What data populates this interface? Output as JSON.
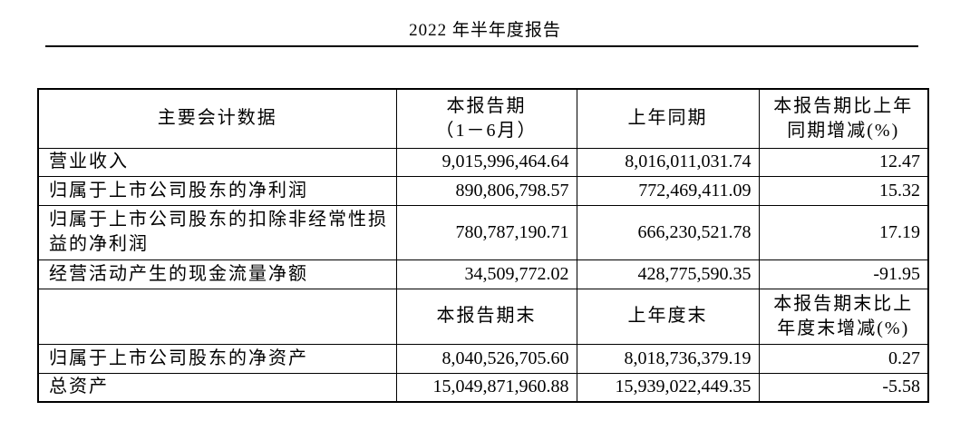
{
  "page": {
    "title": "2022 年半年度报告"
  },
  "colors": {
    "text": "#000000",
    "border": "#000000",
    "background": "#ffffff"
  },
  "table": {
    "header_period": {
      "col1": "主要会计数据",
      "col2_line1": "本报告期",
      "col2_line2": "（1－6月）",
      "col3": "上年同期",
      "col4_line1": "本报告期比上年",
      "col4_line2": "同期增减(%)"
    },
    "rows_period": [
      {
        "label": "营业收入",
        "current": "9,015,996,464.64",
        "prior": "8,016,011,031.74",
        "change": "12.47"
      },
      {
        "label": "归属于上市公司股东的净利润",
        "current": "890,806,798.57",
        "prior": "772,469,411.09",
        "change": "15.32"
      },
      {
        "label": "归属于上市公司股东的扣除非经常性损益的净利润",
        "current": "780,787,190.71",
        "prior": "666,230,521.78",
        "change": "17.19"
      },
      {
        "label": "经营活动产生的现金流量净额",
        "current": "34,509,772.02",
        "prior": "428,775,590.35",
        "change": "-91.95"
      }
    ],
    "header_end": {
      "col1": "",
      "col2": "本报告期末",
      "col3": "上年度末",
      "col4_line1": "本报告期末比上",
      "col4_line2": "年度末增减(%)"
    },
    "rows_end": [
      {
        "label": "归属于上市公司股东的净资产",
        "current": "8,040,526,705.60",
        "prior": "8,018,736,379.19",
        "change": "0.27"
      },
      {
        "label": "总资产",
        "current": "15,049,871,960.88",
        "prior": "15,939,022,449.35",
        "change": "-5.58"
      }
    ]
  }
}
